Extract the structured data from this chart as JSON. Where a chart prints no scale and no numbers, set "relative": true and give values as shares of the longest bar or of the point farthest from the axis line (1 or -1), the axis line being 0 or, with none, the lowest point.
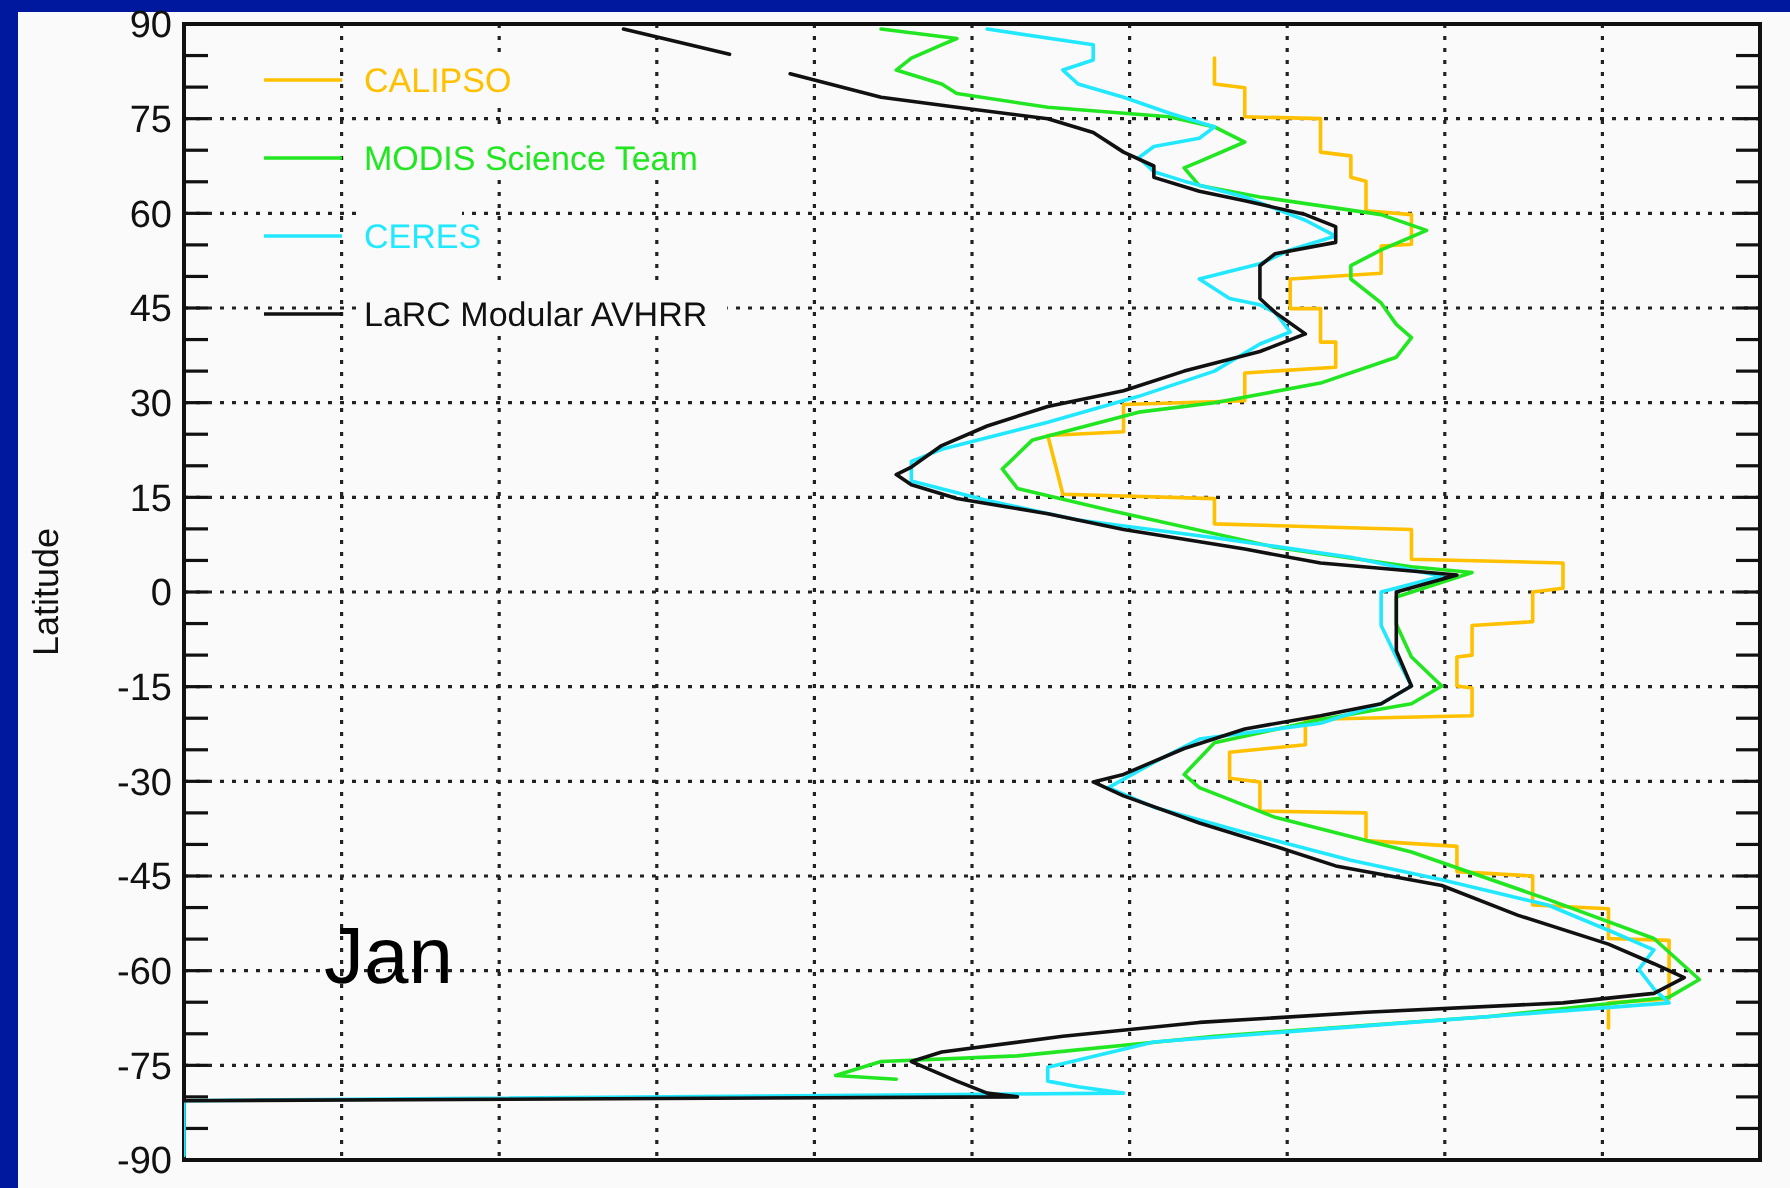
{
  "chart_data": {
    "type": "line",
    "orientation": "horizontal",
    "relative": true,
    "ylabel": "Latitude",
    "annotations": [
      "Jan"
    ],
    "ylim": [
      -90,
      90
    ],
    "yticks": [
      -90,
      {
        "value": -85,
        "label": null
      },
      {
        "value": -80,
        "label": null
      },
      -75,
      {
        "value": -70,
        "label": null
      },
      {
        "value": -65,
        "label": null
      },
      -60,
      {
        "value": -55,
        "label": null
      },
      {
        "value": -50,
        "label": null
      },
      -45,
      {
        "value": -40,
        "label": null
      },
      {
        "value": -35,
        "label": null
      },
      -30,
      {
        "value": -25,
        "label": null
      },
      {
        "value": -20,
        "label": null
      },
      -15,
      {
        "value": -10,
        "label": null
      },
      {
        "value": -5,
        "label": null
      },
      0,
      {
        "value": 5,
        "label": null
      },
      {
        "value": 10,
        "label": null
      },
      15,
      {
        "value": 20,
        "label": null
      },
      {
        "value": 25,
        "label": null
      },
      30,
      {
        "value": 35,
        "label": null
      },
      {
        "value": 40,
        "label": null
      },
      45,
      {
        "value": 50,
        "label": null
      },
      {
        "value": 55,
        "label": null
      },
      60,
      {
        "value": 65,
        "label": null
      },
      {
        "value": 70,
        "label": null
      },
      75,
      {
        "value": 80,
        "label": null
      },
      {
        "value": 85,
        "label": null
      },
      90
    ],
    "grid": true,
    "legend": "top left",
    "line_style": "solid",
    "series": [
      {
        "name": "CALIPSO",
        "color": "#ffc000",
        "x": [
          84.6,
          80.5,
          79.9,
          75.3,
          75,
          69.7,
          69.1,
          65.7,
          65.1,
          60.4,
          59.8,
          55.1,
          54.8,
          50.5,
          49.6,
          44.9,
          44.9,
          39.6,
          39.6,
          35.6,
          34.7,
          30.3,
          29.7,
          25.4,
          24.8,
          15.5,
          14.8,
          10.8,
          9.9,
          5.2,
          4.6,
          0.6,
          0,
          -4.7,
          -5.3,
          -10,
          -10.3,
          -14.9,
          -15.2,
          -19.6,
          -20.2,
          -24.2,
          -25.4,
          -29.5,
          -30.1,
          -34.7,
          -35,
          -39.4,
          -40.3,
          -44.3,
          -45,
          -49.6,
          -50.2,
          -54.9,
          -55.2,
          -64.5,
          -65.1,
          -69.1
        ],
        "values": [
          0.68,
          0.68,
          0.7,
          0.7,
          0.75,
          0.75,
          0.77,
          0.77,
          0.78,
          0.78,
          0.81,
          0.81,
          0.79,
          0.79,
          0.73,
          0.73,
          0.75,
          0.75,
          0.76,
          0.76,
          0.7,
          0.7,
          0.62,
          0.62,
          0.57,
          0.58,
          0.68,
          0.68,
          0.81,
          0.81,
          0.91,
          0.91,
          0.89,
          0.89,
          0.85,
          0.85,
          0.84,
          0.84,
          0.85,
          0.85,
          0.74,
          0.74,
          0.69,
          0.69,
          0.71,
          0.71,
          0.78,
          0.78,
          0.84,
          0.84,
          0.89,
          0.89,
          0.94,
          0.94,
          0.98,
          0.98,
          0.94,
          0.94
        ]
      },
      {
        "name": "MODIS Science Team",
        "color": "#22e622",
        "x": [
          89.2,
          87.7,
          86.7,
          84.6,
          82.7,
          80.5,
          79,
          76.8,
          75.3,
          73.7,
          71.3,
          68.2,
          67.2,
          64.4,
          62.6,
          59.8,
          57.3,
          54.2,
          51.7,
          49.6,
          45.8,
          42.4,
          40.3,
          37.2,
          33.1,
          30,
          28.5,
          24.1,
          19.5,
          16.4,
          13,
          7.1,
          4,
          3.1,
          -0.8,
          -5.1,
          -10.3,
          -14.9,
          -17.7,
          -20.2,
          -23.9,
          -28.9,
          -31,
          -35.7,
          -41.2,
          -48.7,
          -54.9,
          -61.4,
          -64.2,
          -67.3,
          -70.4,
          -73.5,
          -74.4,
          -76.6,
          -77.2
        ],
        "values": [
          0.46,
          0.51,
          0.5,
          0.48,
          0.47,
          0.5,
          0.51,
          0.57,
          0.65,
          0.68,
          0.7,
          0.67,
          0.66,
          0.67,
          0.71,
          0.79,
          0.82,
          0.79,
          0.77,
          0.77,
          0.79,
          0.8,
          0.81,
          0.8,
          0.75,
          0.68,
          0.63,
          0.56,
          0.54,
          0.55,
          0.61,
          0.72,
          0.81,
          0.85,
          0.8,
          0.8,
          0.81,
          0.83,
          0.81,
          0.75,
          0.68,
          0.66,
          0.67,
          0.72,
          0.81,
          0.9,
          0.97,
          1.0,
          0.98,
          0.86,
          0.68,
          0.55,
          0.46,
          0.43,
          0.47
        ]
      },
      {
        "name": "CERES",
        "color": "#22e8ff",
        "x": [
          89.2,
          86.7,
          84.3,
          82.7,
          80.5,
          78.4,
          75.9,
          73.7,
          71.9,
          70.6,
          68.8,
          66.6,
          65.1,
          62.6,
          58.9,
          56.4,
          54.2,
          52,
          49.6,
          46.5,
          45.5,
          44.3,
          41.2,
          39.3,
          35,
          31,
          26.9,
          22.6,
          20.7,
          17.6,
          14.5,
          11.4,
          8.6,
          5.5,
          2.5,
          0,
          -5.3,
          -10.3,
          -14.9,
          -17.7,
          -20.8,
          -23.3,
          -27,
          -31,
          -34.1,
          -38.1,
          -42.5,
          -45.6,
          -49.6,
          -53.6,
          -56.7,
          -59.8,
          -62.9,
          -65.1,
          -68.2,
          -71.3,
          -75.3,
          -77.5,
          -78.4,
          -79.4,
          -80.6,
          -89.3
        ],
        "values": [
          0.53,
          0.6,
          0.6,
          0.58,
          0.59,
          0.62,
          0.65,
          0.68,
          0.67,
          0.64,
          0.63,
          0.64,
          0.66,
          0.7,
          0.74,
          0.76,
          0.73,
          0.71,
          0.67,
          0.69,
          0.71,
          0.72,
          0.73,
          0.71,
          0.68,
          0.63,
          0.57,
          0.5,
          0.48,
          0.48,
          0.53,
          0.59,
          0.68,
          0.77,
          0.83,
          0.79,
          0.79,
          0.8,
          0.81,
          0.79,
          0.75,
          0.67,
          0.64,
          0.61,
          0.64,
          0.7,
          0.77,
          0.83,
          0.9,
          0.94,
          0.97,
          0.96,
          0.97,
          0.98,
          0.81,
          0.64,
          0.57,
          0.57,
          0.59,
          0.62,
          0,
          0
        ]
      },
      {
        "name": "LaRC Modular AVHRR",
        "color": "#111111",
        "x": [
          89.2,
          85.2,
          83.7,
          82.1,
          78.4,
          76.8,
          75,
          72.8,
          69.7,
          67.5,
          65.7,
          63.5,
          62,
          59.8,
          57.9,
          55.4,
          53.6,
          51.7,
          49.6,
          46.5,
          44.3,
          40.9,
          38.1,
          35,
          31.9,
          29.4,
          26.3,
          23.2,
          19.8,
          18.6,
          17,
          14.8,
          12.4,
          9.9,
          6.8,
          4.6,
          2.7,
          0,
          -4.7,
          -9.3,
          -14.9,
          -17.7,
          -19.6,
          -21.7,
          -24.8,
          -28.9,
          -30.1,
          -32.3,
          -36.6,
          -40.3,
          -43.4,
          -46.5,
          -51.2,
          -55.8,
          -58.9,
          -61.1,
          -63.6,
          -65.1,
          -66.6,
          -68.2,
          -70.4,
          -72.9,
          -74.4,
          -77.5,
          -79.4,
          -80,
          -80.6
        ],
        "values": [
          0.29,
          0.36,
          null,
          0.4,
          0.46,
          0.51,
          0.57,
          0.6,
          0.62,
          0.64,
          0.64,
          0.67,
          0.7,
          0.74,
          0.76,
          0.76,
          0.72,
          0.71,
          0.71,
          0.71,
          0.72,
          0.74,
          0.71,
          0.66,
          0.62,
          0.57,
          0.53,
          0.5,
          0.48,
          0.47,
          0.48,
          0.51,
          0.57,
          0.62,
          0.7,
          0.75,
          0.84,
          0.8,
          0.8,
          0.8,
          0.81,
          0.79,
          0.75,
          0.7,
          0.66,
          0.62,
          0.6,
          0.62,
          0.67,
          0.72,
          0.76,
          0.83,
          0.88,
          0.94,
          0.97,
          0.99,
          0.97,
          0.91,
          0.78,
          0.67,
          0.58,
          0.5,
          0.48,
          0.51,
          0.53,
          0.55,
          0
        ]
      }
    ]
  }
}
